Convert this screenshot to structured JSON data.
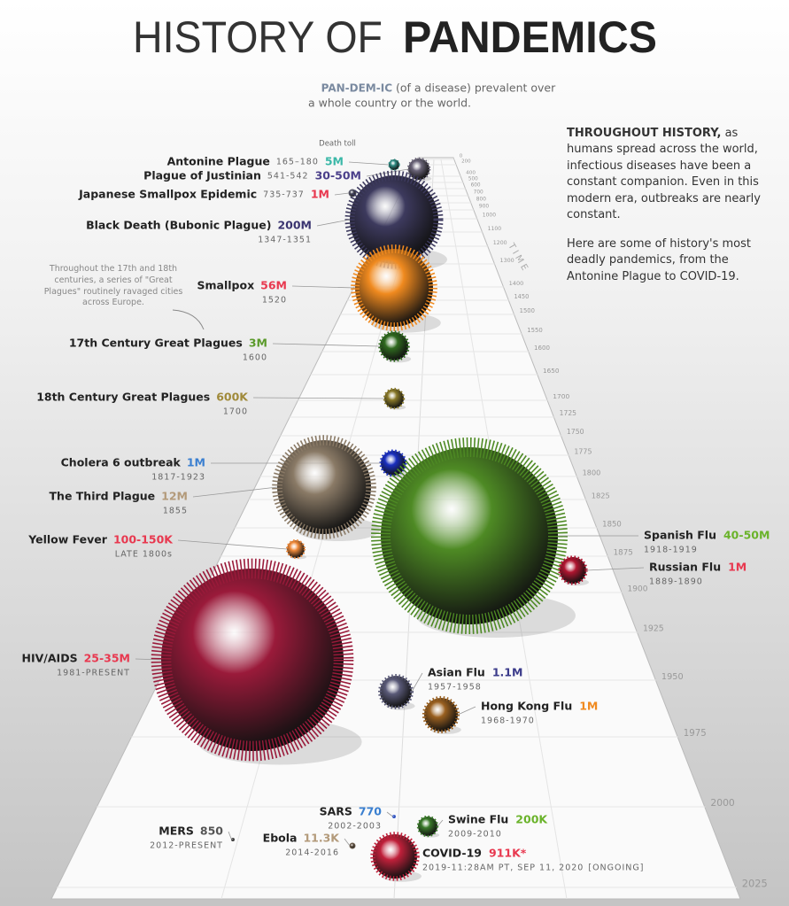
{
  "title": {
    "light": "HISTORY OF",
    "bold": "PANDEMICS"
  },
  "definition": {
    "term": "PAN-DEM-IC",
    "line1": "(of a disease) prevalent over",
    "line2": "a whole country or the world."
  },
  "intro": {
    "lead": "THROUGHOUT HISTORY,",
    "text": "as humans spread across the world, infectious diseases have been a constant companion. Even in this modern era, outbreaks are nearly constant.",
    "text2": "Here are some of history's most deadly pandemics, from the Antonine Plague to COVID-19."
  },
  "death_toll_label": "Death toll",
  "time_label": "T I M E",
  "note": "Throughout the 17th and 18th centuries, a series of \"Great Plagues\" routinely ravaged cities across Europe.",
  "years": [
    "0",
    "200",
    "400",
    "500",
    "600",
    "700",
    "800",
    "900",
    "1000",
    "1100",
    "1200",
    "1300",
    "1400",
    "1450",
    "1500",
    "1550",
    "1600",
    "1650",
    "1700",
    "1725",
    "1750",
    "1775",
    "1800",
    "1825",
    "1850",
    "1875",
    "1900",
    "1925",
    "1950",
    "1975",
    "2000",
    "2025"
  ],
  "pandemics": [
    {
      "name": "Antonine Plague",
      "years": "165–180",
      "toll": "5M",
      "color": "#3bb8a8",
      "bubble_color": "#2f8f86"
    },
    {
      "name": "Plague of Justinian",
      "years": "541-542",
      "toll": "30-50M",
      "color": "#4a3f8a",
      "bubble_color": "#6a6478"
    },
    {
      "name": "Japanese Smallpox Epidemic",
      "years": "735-737",
      "toll": "1M",
      "color": "#e8384f",
      "bubble_color": "#555566"
    },
    {
      "name": "Black Death (Bubonic Plague)",
      "years": "1347-1351",
      "toll": "200M",
      "color": "#3a3470",
      "bubble_color": "#3d3a5e"
    },
    {
      "name": "Smallpox",
      "years": "1520",
      "toll": "56M",
      "color": "#e8384f",
      "bubble_color": "#f08a1f"
    },
    {
      "name": "17th Century Great Plagues",
      "years": "1600",
      "toll": "3M",
      "color": "#5a9a2a",
      "bubble_color": "#2f6a1f"
    },
    {
      "name": "18th Century Great Plagues",
      "years": "1700",
      "toll": "600K",
      "color": "#a08a3a",
      "bubble_color": "#8a7a2a"
    },
    {
      "name": "Cholera 6 outbreak",
      "years": "1817-1923",
      "toll": "1M",
      "color": "#3a7fd0",
      "bubble_color": "#1a2fc0"
    },
    {
      "name": "The Third Plague",
      "years": "1855",
      "toll": "12M",
      "color": "#b39a7a",
      "bubble_color": "#8a7a66"
    },
    {
      "name": "Yellow Fever",
      "years": "LATE 1800s",
      "toll": "100-150K",
      "color": "#e8384f",
      "bubble_color": "#f08a3a"
    },
    {
      "name": "Spanish Flu",
      "years": "1918-1919",
      "toll": "40-50M",
      "color": "#6ab32a",
      "bubble_color": "#4e8a24"
    },
    {
      "name": "Russian Flu",
      "years": "1889-1890",
      "toll": "1M",
      "color": "#e8384f",
      "bubble_color": "#b01530"
    },
    {
      "name": "HIV/AIDS",
      "years": "1981-PRESENT",
      "toll": "25-35M",
      "color": "#e8384f",
      "bubble_color": "#9a1a3a"
    },
    {
      "name": "Asian Flu",
      "years": "1957-1958",
      "toll": "1.1M",
      "color": "#3a3a8a",
      "bubble_color": "#5a5a78"
    },
    {
      "name": "Hong Kong Flu",
      "years": "1968-1970",
      "toll": "1M",
      "color": "#f08a1f",
      "bubble_color": "#9a6020"
    },
    {
      "name": "SARS",
      "years": "2002-2003",
      "toll": "770",
      "color": "#3a7fd0",
      "bubble_color": "#3a5fd0"
    },
    {
      "name": "MERS",
      "years": "2012-PRESENT",
      "toll": "850",
      "color": "#555555",
      "bubble_color": "#444444"
    },
    {
      "name": "Ebola",
      "years": "2014-2016",
      "toll": "11.3K",
      "color": "#b39a7a",
      "bubble_color": "#6a5a4a"
    },
    {
      "name": "Swine Flu",
      "years": "2009-2010",
      "toll": "200K",
      "color": "#6ab32a",
      "bubble_color": "#3a7a2a"
    },
    {
      "name": "COVID-19",
      "years": "2019-11:28AM PT, SEP 11, 2020",
      "status": "[ONGOING]",
      "toll": "911K*",
      "color": "#e8384f",
      "bubble_color": "#c0203a"
    }
  ]
}
